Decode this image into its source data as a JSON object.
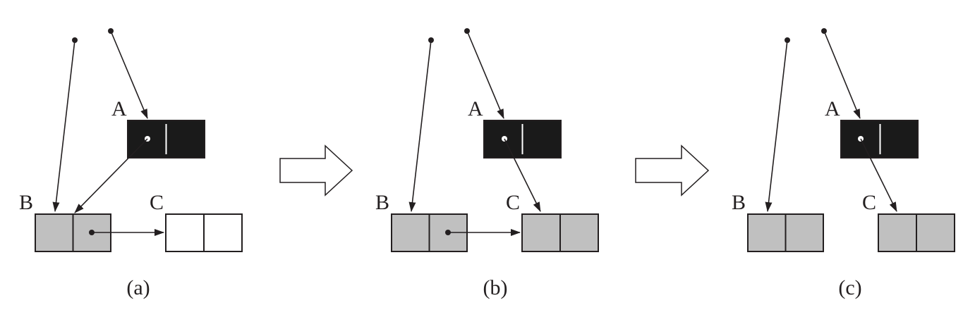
{
  "panels": [
    {
      "caption": "(a)",
      "labels": {
        "a": "A",
        "b": "B",
        "c": "C"
      },
      "node_fill": {
        "a": "#1a1a1a",
        "b": "#c0c0c0",
        "c": "#ffffff"
      },
      "a_points_to": "B",
      "b_points_to_c": true
    },
    {
      "caption": "(b)",
      "labels": {
        "a": "A",
        "b": "B",
        "c": "C"
      },
      "node_fill": {
        "a": "#1a1a1a",
        "b": "#c0c0c0",
        "c": "#c0c0c0"
      },
      "a_points_to": "C",
      "b_points_to_c": true
    },
    {
      "caption": "(c)",
      "labels": {
        "a": "A",
        "b": "B",
        "c": "C"
      },
      "node_fill": {
        "a": "#1a1a1a",
        "b": "#c0c0c0",
        "c": "#c0c0c0"
      },
      "a_points_to": "C",
      "b_points_to_c": false
    }
  ],
  "colors": {
    "ink": "#231f20",
    "black_node": "#1a1a1a",
    "grey_node": "#c0c0c0",
    "white_node": "#ffffff"
  }
}
